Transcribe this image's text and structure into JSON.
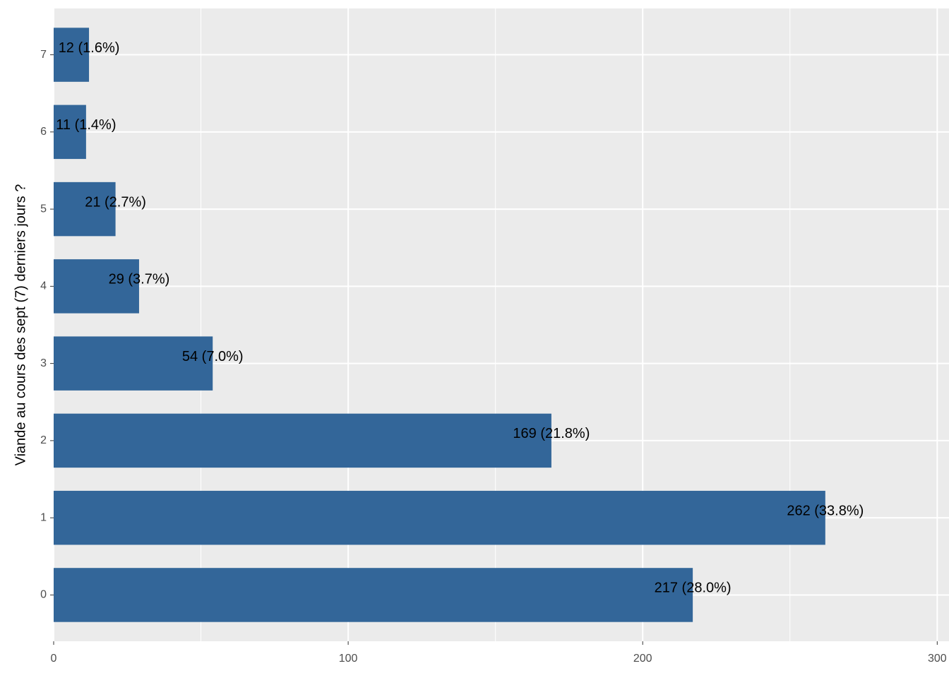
{
  "chart_data": {
    "type": "bar",
    "orientation": "horizontal",
    "y_label": "Viande au cours des sept (7) derniers jours ?",
    "categories": [
      "0",
      "1",
      "2",
      "3",
      "4",
      "5",
      "6",
      "7"
    ],
    "values": [
      217,
      262,
      169,
      54,
      29,
      21,
      11,
      12
    ],
    "value_labels": [
      "217 (28.0%)",
      "262 (33.8%)",
      "169 (21.8%)",
      "54 (7.0%)",
      "29 (3.7%)",
      "21 (2.7%)",
      "11 (1.4%)",
      "12 (1.6%)"
    ],
    "color": "#336699",
    "xlim": [
      0,
      304
    ],
    "xticks": [
      0,
      100,
      200,
      300
    ],
    "minor_xticks": [
      50,
      150,
      250
    ],
    "grid": true
  }
}
